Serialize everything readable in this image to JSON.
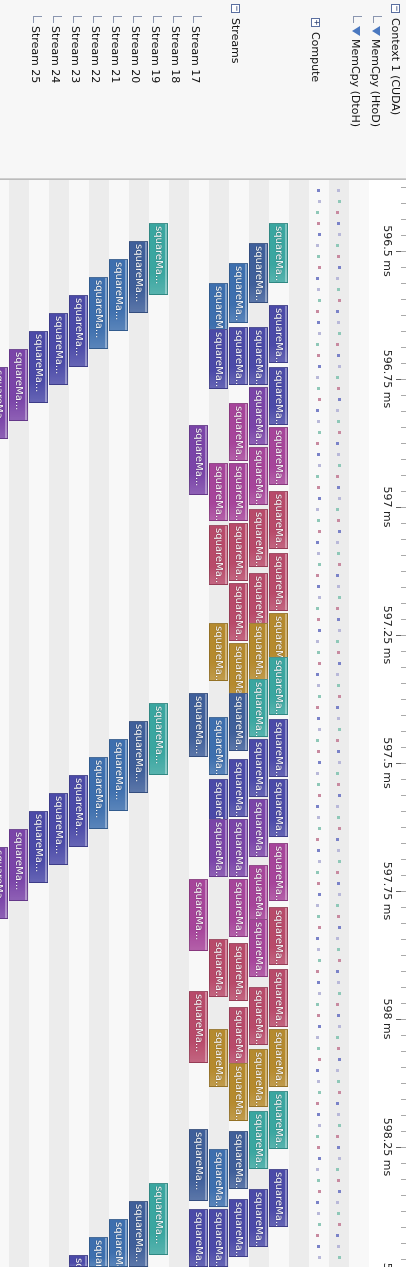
{
  "tree": [
    {
      "id": "context",
      "label": "Context 1 (CUDA)",
      "indent": 0,
      "expander": "−",
      "lane": 0
    },
    {
      "id": "htod",
      "label": "MemCpy (HtoD)",
      "indent": 1,
      "filter": true,
      "lane": 1
    },
    {
      "id": "dtoh",
      "label": "MemCpy (DtoH)",
      "indent": 1,
      "filter": true,
      "lane": 2
    },
    {
      "id": "compute",
      "label": "Compute",
      "indent": 1,
      "expander": "+",
      "lane": 4
    },
    {
      "id": "streams",
      "label": "Streams",
      "indent": 0,
      "expander": "−",
      "lane": 8
    },
    {
      "id": "s17",
      "label": "Stream 17",
      "indent": 1,
      "lane": 10
    },
    {
      "id": "s18",
      "label": "Stream 18",
      "indent": 1,
      "lane": 11
    },
    {
      "id": "s19",
      "label": "Stream 19",
      "indent": 1,
      "lane": 12
    },
    {
      "id": "s20",
      "label": "Stream 20",
      "indent": 1,
      "lane": 13
    },
    {
      "id": "s21",
      "label": "Stream 21",
      "indent": 1,
      "lane": 14
    },
    {
      "id": "s22",
      "label": "Stream 22",
      "indent": 1,
      "lane": 15
    },
    {
      "id": "s23",
      "label": "Stream 23",
      "indent": 1,
      "lane": 16
    },
    {
      "id": "s24",
      "label": "Stream 24",
      "indent": 1,
      "lane": 17
    },
    {
      "id": "s25",
      "label": "Stream 25",
      "indent": 1,
      "lane": 18
    }
  ],
  "ruler": {
    "labels": [
      "596.5 ms",
      "596.75 ms",
      "597 ms",
      "597.25 ms",
      "597.5 ms",
      "597.75 ms",
      "598 ms",
      "598.25 ms",
      "598."
    ]
  },
  "kernel_label": "squareMa...",
  "colors": {
    "teal": "#3aa6a0",
    "blue": "#3d6fae",
    "indigo": "#4b4aa8",
    "purple": "#7a44a8",
    "magenta": "#a6449a",
    "rose": "#b84a6a",
    "amber": "#b58a2e",
    "slate": "#3f5f9a"
  },
  "memcpy_colors": [
    "#7a82c8",
    "#c88aa0",
    "#8fc8b8",
    "#b9b9d9"
  ]
}
